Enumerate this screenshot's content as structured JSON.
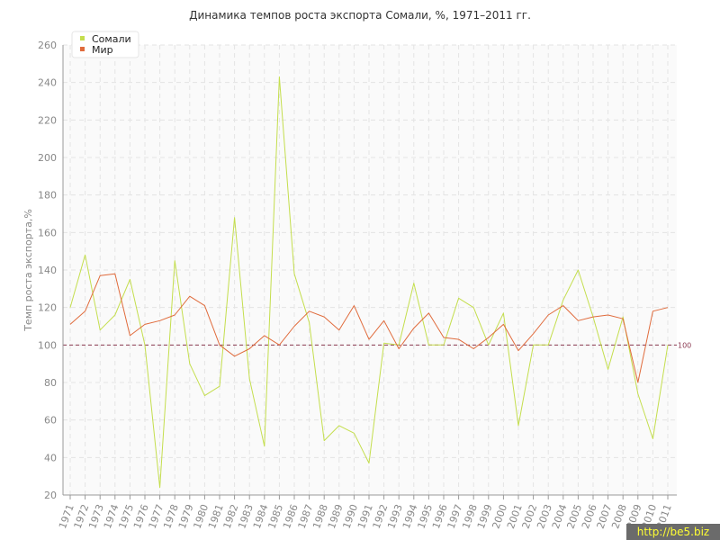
{
  "chart_data": {
    "type": "line",
    "title": "Динамика темпов роста экспорта Сомали, %, 1971–2011 гг.",
    "ylabel": "Темп роста экспорта,%",
    "xlabel": "",
    "ylim": [
      20,
      260
    ],
    "yticks": [
      20,
      40,
      60,
      80,
      100,
      120,
      140,
      160,
      180,
      200,
      220,
      240,
      260
    ],
    "x": [
      "1971",
      "1972",
      "1973",
      "1974",
      "1975",
      "1976",
      "1977",
      "1978",
      "1979",
      "1980",
      "1981",
      "1982",
      "1983",
      "1984",
      "1985",
      "1986",
      "1987",
      "1988",
      "1989",
      "1990",
      "1991",
      "1992",
      "1993",
      "1994",
      "1995",
      "1996",
      "1997",
      "1998",
      "1999",
      "2000",
      "2001",
      "2002",
      "2003",
      "2004",
      "2005",
      "2006",
      "2007",
      "2008",
      "2009",
      "2010",
      "2011"
    ],
    "series": [
      {
        "name": "Сомали",
        "color": "#c4de4d",
        "values": [
          120,
          148,
          108,
          116,
          135,
          100,
          24,
          145,
          90,
          73,
          78,
          168,
          82,
          46,
          243,
          138,
          112,
          49,
          57,
          53,
          37,
          101,
          100,
          133,
          100,
          100,
          125,
          120,
          100,
          117,
          57,
          100,
          100,
          124,
          140,
          115,
          87,
          115,
          74,
          50,
          100
        ]
      },
      {
        "name": "Мир",
        "color": "#e06b3c",
        "values": [
          111,
          118,
          137,
          138,
          105,
          111,
          113,
          116,
          126,
          121,
          100,
          94,
          98,
          105,
          100,
          110,
          118,
          115,
          108,
          121,
          103,
          113,
          98,
          109,
          117,
          104,
          103,
          98,
          104,
          111,
          97,
          106,
          116,
          121,
          113,
          115,
          116,
          114,
          80,
          118,
          120
        ]
      }
    ],
    "reference_line": {
      "value": 100,
      "label": "100",
      "color": "#8b3a52"
    },
    "grid": true,
    "legend_position": "top-left"
  }
}
